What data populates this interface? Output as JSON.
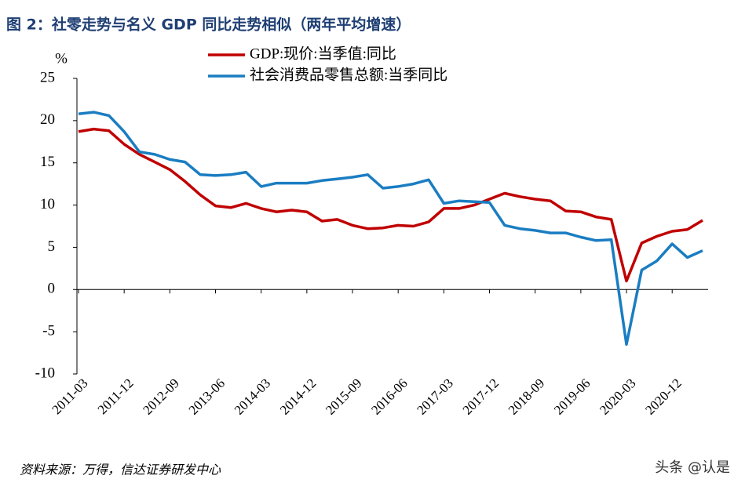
{
  "chart_data": {
    "type": "line",
    "title": "图 2：社零走势与名义 GDP 同比走势相似（两年平均增速）",
    "y_unit": "%",
    "source": "资料来源：万得，信达证券研发中心",
    "watermark": "头条 @认是",
    "categories": [
      "2011-03",
      null,
      null,
      "2011-12",
      null,
      null,
      "2012-09",
      null,
      null,
      "2013-06",
      null,
      null,
      "2014-03",
      null,
      null,
      "2014-12",
      null,
      null,
      "2015-09",
      null,
      null,
      "2016-06",
      null,
      null,
      "2017-03",
      null,
      null,
      "2017-12",
      null,
      null,
      "2018-09",
      null,
      null,
      "2019-06",
      null,
      null,
      "2020-03",
      null,
      null,
      "2020-12",
      null,
      null
    ],
    "series": [
      {
        "name": "GDP:现价:当季值:同比",
        "color": "#c00000",
        "values": [
          18.7,
          19.0,
          18.8,
          17.2,
          16.0,
          15.1,
          14.2,
          12.8,
          11.2,
          9.9,
          9.7,
          10.2,
          9.6,
          9.2,
          9.4,
          9.2,
          8.1,
          8.3,
          7.6,
          7.2,
          7.3,
          7.6,
          7.5,
          8.0,
          9.6,
          9.6,
          10.0,
          10.7,
          11.4,
          11.0,
          10.7,
          10.5,
          9.3,
          9.2,
          8.6,
          8.3,
          1.0,
          5.5,
          6.3,
          6.9,
          7.1,
          8.2
        ]
      },
      {
        "name": "社会消费品零售总额:当季同比",
        "color": "#1a7dc2",
        "values": [
          20.8,
          21.0,
          20.6,
          18.7,
          16.3,
          16.0,
          15.4,
          15.1,
          13.6,
          13.5,
          13.6,
          13.9,
          12.2,
          12.6,
          12.6,
          12.6,
          12.9,
          13.1,
          13.3,
          13.6,
          12.0,
          12.2,
          12.5,
          13.0,
          10.2,
          10.5,
          10.4,
          10.3,
          7.6,
          7.2,
          7.0,
          6.7,
          6.7,
          6.2,
          5.8,
          5.9,
          -6.5,
          2.3,
          3.4,
          5.4,
          3.8,
          4.6
        ]
      }
    ],
    "ylim": [
      -10,
      25
    ],
    "yticks": [
      25,
      20,
      15,
      10,
      5,
      0,
      -5,
      -10
    ],
    "grid": false
  }
}
